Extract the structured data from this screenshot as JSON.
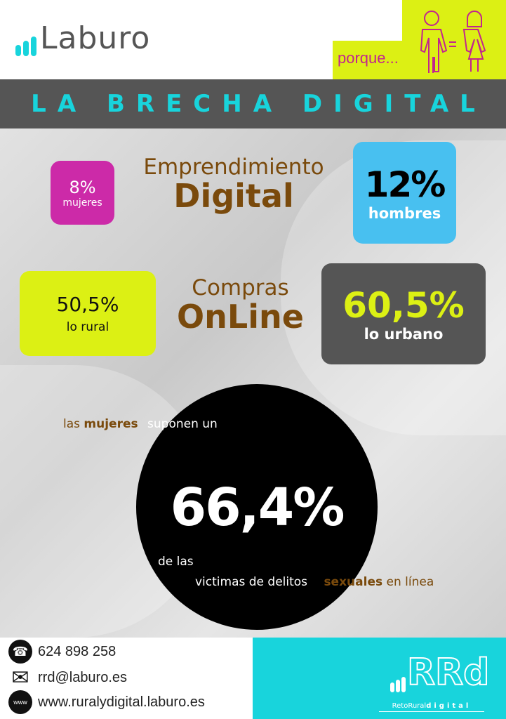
{
  "header": {
    "logo_text": "Laburo",
    "tagline": "porque...",
    "equality_icon": "man-equals-woman-icon"
  },
  "title": "LA BRECHA DIGITAL",
  "emprendimiento": {
    "line1": "Emprendimiento",
    "line2": "Digital",
    "women_value": "8%",
    "women_label": "mujeres",
    "men_value": "12%",
    "men_label": "hombres"
  },
  "compras": {
    "line1": "Compras",
    "line2": "OnLine",
    "rural_value": "50,5%",
    "rural_label": "lo rural",
    "urban_value": "60,5%",
    "urban_label": "lo urbano"
  },
  "victimas": {
    "pre1": "las",
    "pre2": "mujeres",
    "pre3": "suponen un",
    "value": "66,4%",
    "post1": "de las",
    "post2": "victimas de delitos",
    "post3": "sexuales",
    "post4": "en línea"
  },
  "footer": {
    "phone": "624 898 258",
    "email": "rrd@laburo.es",
    "web": "www.ruralydigital.laburo.es",
    "rrd_logo": "RRd",
    "rrd_sub1": "RetoRural",
    "rrd_sub2": "digital"
  },
  "colors": {
    "cyan": "#18d4dc",
    "lime": "#dcf014",
    "magenta": "#cc2aa8",
    "brown": "#7a4a0c",
    "blue": "#48c0f0",
    "dark": "#555555"
  }
}
